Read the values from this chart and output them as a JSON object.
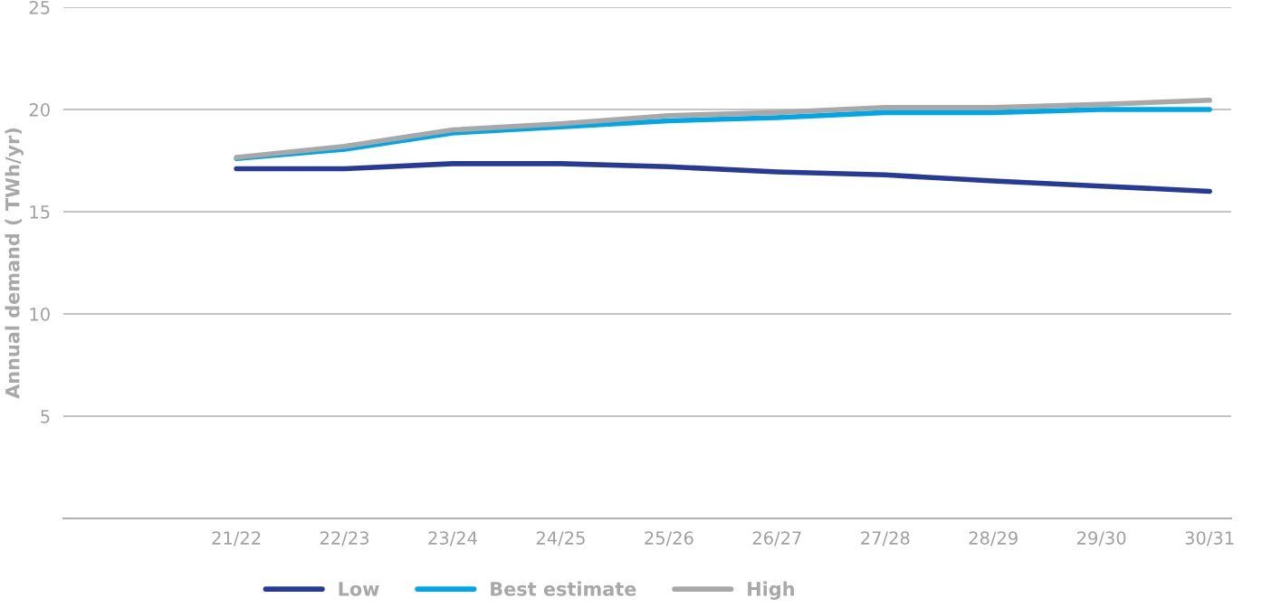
{
  "chart_data": {
    "type": "line",
    "ylabel": "Annual demand ( TWh/yr)",
    "categories": [
      "21/22",
      "22/23",
      "23/24",
      "24/25",
      "25/26",
      "26/27",
      "27/28",
      "28/29",
      "29/30",
      "30/31"
    ],
    "series": [
      {
        "name": "Low",
        "color": "#263a96",
        "values": [
          17.1,
          17.1,
          17.35,
          17.35,
          17.2,
          16.95,
          16.8,
          16.5,
          16.25,
          16.0
        ]
      },
      {
        "name": "Best estimate",
        "color": "#00a7e6",
        "values": [
          17.6,
          18.05,
          18.85,
          19.15,
          19.45,
          19.6,
          19.85,
          19.85,
          20.0,
          20.0
        ]
      },
      {
        "name": "High",
        "color": "#a8a8a8",
        "values": [
          17.65,
          18.2,
          19.0,
          19.3,
          19.7,
          19.85,
          20.1,
          20.1,
          20.25,
          20.45
        ]
      }
    ],
    "ylim": [
      0,
      25
    ],
    "yticks": [
      5,
      10,
      15,
      20,
      25
    ],
    "grid": "y",
    "legend": "bottom",
    "line_style": "solid",
    "marker": "none"
  }
}
